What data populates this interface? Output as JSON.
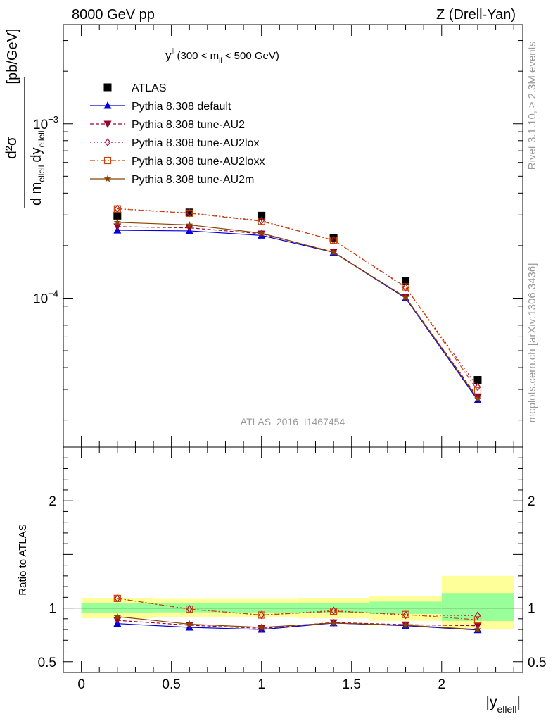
{
  "header": {
    "left": "8000 GeV pp",
    "right": "Z (Drell-Yan)"
  },
  "side": {
    "rivet": "Rivet 3.1.10, ≥ 2.3M events",
    "mcplots": "mcplots.cern.ch [arXiv:1306.3436]"
  },
  "main_plot": {
    "label_var": "y",
    "label_var_sup": "ll",
    "label_range_open": "(300 < m",
    "label_range_sub": "ll",
    "label_range_close": " < 500 GeV)",
    "analysis_id": "ATLAS_2016_I1467454",
    "ylabel": {
      "dsigma": "d²σ",
      "denom_d_m": "d m",
      "denom_sub1": "ellell",
      "denom_dy": "dy",
      "denom_sub2": "ellell",
      "units": "[pb/GeV]"
    }
  },
  "ratio_plot": {
    "ylabel": "Ratio to ATLAS"
  },
  "xaxis": {
    "label_main": "|y",
    "label_sub": "ellell",
    "label_end": "|"
  },
  "colors": {
    "atlas": "#000000",
    "default": "#0000dd",
    "au2": "#99002d",
    "au2lox": "#aa1144",
    "au2loxx": "#cc4400",
    "au2m": "#884400",
    "band_inner": "#99ff99",
    "band_outer": "#ffff99"
  },
  "chart_data": [
    {
      "type": "scatter",
      "name": "main",
      "log_y": true,
      "xlim": [
        -0.1,
        2.45
      ],
      "ylim": [
        1.4e-05,
        0.0037
      ],
      "yticks_labeled": [
        {
          "value": 0.0001,
          "base": "10",
          "exp": "−4"
        },
        {
          "value": 0.001,
          "base": "10",
          "exp": "−3"
        }
      ],
      "x": [
        0.2,
        0.6,
        1.0,
        1.4,
        1.8,
        2.2
      ],
      "series": [
        {
          "name": "ATLAS",
          "marker": "square-filled",
          "line": "none",
          "values": [
            0.000297,
            0.00031,
            0.000297,
            0.000222,
            0.000125,
            3.4e-05
          ],
          "bins": [
            [
              0.0,
              0.4
            ],
            [
              0.4,
              0.8
            ],
            [
              0.8,
              1.2
            ],
            [
              1.2,
              1.6
            ],
            [
              1.6,
              2.0
            ],
            [
              2.0,
              2.4
            ]
          ]
        },
        {
          "name": "Pythia 8.308 default",
          "marker": "triangle-up-filled",
          "line": "solid",
          "values": [
            0.000245,
            0.000243,
            0.000229,
            0.000183,
            0.0001,
            2.6e-05
          ]
        },
        {
          "name": "Pythia 8.308 tune-AU2",
          "marker": "triangle-down-filled",
          "line": "dashed",
          "values": [
            0.000257,
            0.000253,
            0.000234,
            0.000184,
            0.000101,
            2.7e-05
          ]
        },
        {
          "name": "Pythia 8.308 tune-AU2lox",
          "marker": "diamond-open",
          "line": "dotted",
          "values": [
            0.000326,
            0.000308,
            0.000278,
            0.000215,
            0.000115,
            3.1e-05
          ]
        },
        {
          "name": "Pythia 8.308 tune-AU2loxx",
          "marker": "square-open",
          "line": "dashdot",
          "values": [
            0.000325,
            0.000307,
            0.000276,
            0.000215,
            0.000116,
            2.95e-05
          ]
        },
        {
          "name": "Pythia 8.308 tune-AU2m",
          "marker": "star",
          "line": "solid",
          "values": [
            0.000272,
            0.000263,
            0.000236,
            0.000183,
            0.000101,
            2.65e-05
          ]
        }
      ]
    },
    {
      "type": "scatter",
      "name": "ratio",
      "xlim": [
        -0.1,
        2.45
      ],
      "ylim": [
        0.4,
        2.5
      ],
      "xticks": [
        0,
        0.5,
        1,
        1.5,
        2
      ],
      "xtick_labels": [
        "0",
        "0.5",
        "1",
        "1.5",
        "2"
      ],
      "yticks_labeled": [
        0.5,
        1,
        2
      ],
      "ytick_labels": [
        "0.5",
        "1",
        "2"
      ],
      "x": [
        0.2,
        0.6,
        1.0,
        1.4,
        1.8,
        2.2
      ],
      "bands": [
        {
          "bin": [
            0.0,
            0.4
          ],
          "inner": [
            0.955,
            1.048
          ],
          "outer": [
            0.905,
            1.095
          ]
        },
        {
          "bin": [
            0.4,
            0.8
          ],
          "inner": [
            0.96,
            1.045
          ],
          "outer": [
            0.915,
            1.085
          ]
        },
        {
          "bin": [
            0.8,
            1.2
          ],
          "inner": [
            0.958,
            1.045
          ],
          "outer": [
            0.912,
            1.085
          ]
        },
        {
          "bin": [
            1.2,
            1.6
          ],
          "inner": [
            0.955,
            1.05
          ],
          "outer": [
            0.905,
            1.095
          ]
        },
        {
          "bin": [
            1.6,
            2.0
          ],
          "inner": [
            0.945,
            1.06
          ],
          "outer": [
            0.88,
            1.11
          ]
        },
        {
          "bin": [
            2.0,
            2.4
          ],
          "inner": [
            0.88,
            1.14
          ],
          "outer": [
            0.8,
            1.3
          ]
        }
      ],
      "series": [
        {
          "name": "Pythia 8.308 default",
          "values": [
            0.855,
            0.82,
            0.8,
            0.86,
            0.835,
            0.795
          ]
        },
        {
          "name": "Pythia 8.308 tune-AU2",
          "values": [
            0.885,
            0.84,
            0.81,
            0.865,
            0.845,
            0.835
          ]
        },
        {
          "name": "Pythia 8.308 tune-AU2lox",
          "values": [
            1.09,
            0.99,
            0.935,
            0.975,
            0.935,
            0.93
          ]
        },
        {
          "name": "Pythia 8.308 tune-AU2loxx",
          "values": [
            1.09,
            0.99,
            0.935,
            0.97,
            0.94,
            0.89
          ]
        },
        {
          "name": "Pythia 8.308 tune-AU2m",
          "values": [
            0.92,
            0.85,
            0.82,
            0.86,
            0.84,
            0.8
          ]
        }
      ]
    }
  ]
}
